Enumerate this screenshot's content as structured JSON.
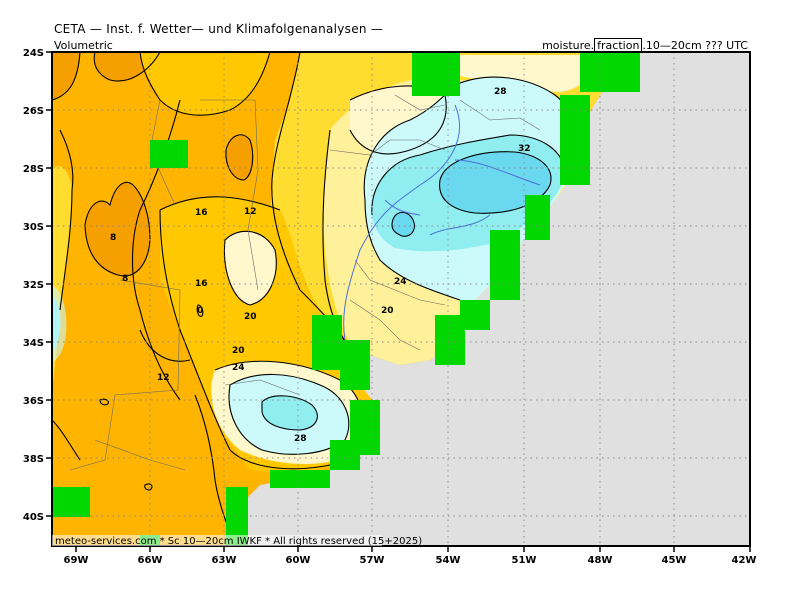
{
  "header": {
    "title": "CETA — Inst. f. Wetter— und Klimafolgenanalysen —",
    "left_sub": "Volumetric",
    "right_pre": "moisture.",
    "right_box": "fraction",
    "right_post": ".10—20cm  ??? UTC"
  },
  "footer": "meteo-services.com * Sc 10—20cm IWKF * All rights reserved (15+2025)",
  "axes": {
    "lat_labels": [
      "24S",
      "26S",
      "28S",
      "30S",
      "32S",
      "34S",
      "36S",
      "38S",
      "40S"
    ],
    "lon_labels": [
      "69W",
      "66W",
      "63W",
      "60W",
      "57W",
      "54W",
      "51W",
      "48W",
      "45W",
      "42W"
    ]
  },
  "contour_labels": [
    "28",
    "32",
    "16",
    "12",
    "8",
    "8",
    "16",
    "0",
    "24",
    "20",
    "20",
    "20",
    "24",
    "12",
    "28"
  ],
  "colors": {
    "dark_orange": "#f5a000",
    "orange": "#ffb400",
    "amber": "#ffc800",
    "yellow": "#ffdc30",
    "light_yellow": "#fff09a",
    "cream": "#fff8cc",
    "light_cyan": "#ccfafa",
    "cyan": "#90eef0",
    "mid_cyan": "#6ad8ee",
    "water_green": "#00d800",
    "ocean": "#e0e0e0",
    "rivers": "#4a70d8"
  }
}
